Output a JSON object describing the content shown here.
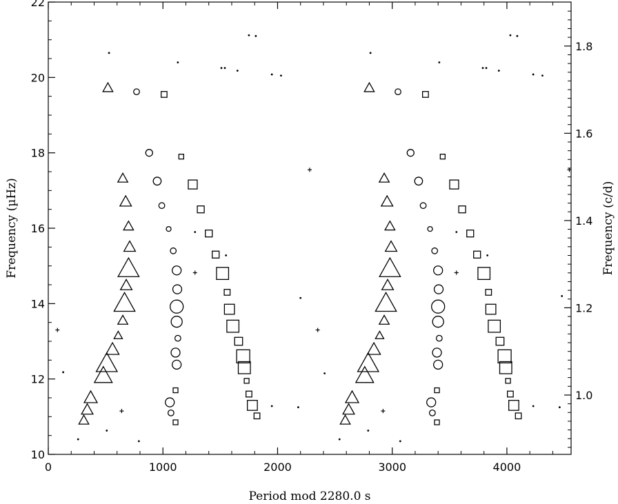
{
  "chart_data": {
    "type": "scatter",
    "xlabel": "Period mod 2280.0 s",
    "ylabel": "Frequency (µHz)",
    "ylabel2": "Frequency (c/d)",
    "xlim": [
      0,
      4560
    ],
    "ylim": [
      10,
      22
    ],
    "ylim2_cd": [
      0.864,
      1.9008
    ],
    "x_ticks": [
      0,
      1000,
      2000,
      3000,
      4000
    ],
    "x_tick_labels": [
      "0",
      "1000",
      "2000",
      "3000",
      "4000"
    ],
    "y_ticks": [
      10,
      12,
      14,
      16,
      18,
      20,
      22
    ],
    "y_tick_labels": [
      "10",
      "12",
      "14",
      "16",
      "18",
      "20",
      "22"
    ],
    "y2_ticks": [
      1.0,
      1.2,
      1.4,
      1.6,
      1.8
    ],
    "y2_tick_labels": [
      "1.0",
      "1.2",
      "1.4",
      "1.6",
      "1.8"
    ],
    "grid": false,
    "series": [
      {
        "marker": "triangle",
        "points": [
          {
            "x": 520,
            "y": 19.72,
            "s": 3
          },
          {
            "x": 650,
            "y": 17.32,
            "s": 3
          },
          {
            "x": 675,
            "y": 16.7,
            "s": 4
          },
          {
            "x": 700,
            "y": 16.05,
            "s": 3
          },
          {
            "x": 710,
            "y": 15.5,
            "s": 4
          },
          {
            "x": 700,
            "y": 14.92,
            "s": 10
          },
          {
            "x": 680,
            "y": 14.48,
            "s": 4
          },
          {
            "x": 665,
            "y": 14.0,
            "s": 10
          },
          {
            "x": 650,
            "y": 13.55,
            "s": 3
          },
          {
            "x": 610,
            "y": 13.15,
            "s": 2
          },
          {
            "x": 560,
            "y": 12.78,
            "s": 5
          },
          {
            "x": 510,
            "y": 12.4,
            "s": 10
          },
          {
            "x": 480,
            "y": 12.08,
            "s": 8
          },
          {
            "x": 370,
            "y": 11.5,
            "s": 5
          },
          {
            "x": 340,
            "y": 11.18,
            "s": 4
          },
          {
            "x": 310,
            "y": 10.9,
            "s": 3
          },
          {
            "x": 2800,
            "y": 19.72,
            "s": 3
          },
          {
            "x": 2930,
            "y": 17.32,
            "s": 3
          },
          {
            "x": 2955,
            "y": 16.7,
            "s": 4
          },
          {
            "x": 2980,
            "y": 16.05,
            "s": 3
          },
          {
            "x": 2990,
            "y": 15.5,
            "s": 4
          },
          {
            "x": 2980,
            "y": 14.92,
            "s": 10
          },
          {
            "x": 2960,
            "y": 14.48,
            "s": 4
          },
          {
            "x": 2945,
            "y": 14.0,
            "s": 10
          },
          {
            "x": 2930,
            "y": 13.55,
            "s": 3
          },
          {
            "x": 2890,
            "y": 13.15,
            "s": 2
          },
          {
            "x": 2840,
            "y": 12.78,
            "s": 5
          },
          {
            "x": 2790,
            "y": 12.4,
            "s": 10
          },
          {
            "x": 2760,
            "y": 12.08,
            "s": 8
          },
          {
            "x": 2650,
            "y": 11.5,
            "s": 5
          },
          {
            "x": 2620,
            "y": 11.18,
            "s": 4
          },
          {
            "x": 2590,
            "y": 10.9,
            "s": 3
          }
        ]
      },
      {
        "marker": "circle",
        "points": [
          {
            "x": 770,
            "y": 19.62,
            "s": 3
          },
          {
            "x": 880,
            "y": 18.0,
            "s": 4
          },
          {
            "x": 950,
            "y": 17.25,
            "s": 5
          },
          {
            "x": 990,
            "y": 16.6,
            "s": 3
          },
          {
            "x": 1050,
            "y": 15.98,
            "s": 2
          },
          {
            "x": 1090,
            "y": 15.4,
            "s": 3
          },
          {
            "x": 1120,
            "y": 14.88,
            "s": 6
          },
          {
            "x": 1125,
            "y": 14.38,
            "s": 6
          },
          {
            "x": 1120,
            "y": 13.92,
            "s": 10
          },
          {
            "x": 1120,
            "y": 13.52,
            "s": 8
          },
          {
            "x": 1130,
            "y": 13.08,
            "s": 3
          },
          {
            "x": 1110,
            "y": 12.7,
            "s": 6
          },
          {
            "x": 1120,
            "y": 12.38,
            "s": 6
          },
          {
            "x": 1060,
            "y": 11.38,
            "s": 6
          },
          {
            "x": 1070,
            "y": 11.1,
            "s": 3
          },
          {
            "x": 3050,
            "y": 19.62,
            "s": 3
          },
          {
            "x": 3160,
            "y": 18.0,
            "s": 4
          },
          {
            "x": 3230,
            "y": 17.25,
            "s": 5
          },
          {
            "x": 3270,
            "y": 16.6,
            "s": 3
          },
          {
            "x": 3330,
            "y": 15.98,
            "s": 2
          },
          {
            "x": 3370,
            "y": 15.4,
            "s": 3
          },
          {
            "x": 3400,
            "y": 14.88,
            "s": 6
          },
          {
            "x": 3405,
            "y": 14.38,
            "s": 6
          },
          {
            "x": 3400,
            "y": 13.92,
            "s": 10
          },
          {
            "x": 3400,
            "y": 13.52,
            "s": 8
          },
          {
            "x": 3410,
            "y": 13.08,
            "s": 3
          },
          {
            "x": 3390,
            "y": 12.7,
            "s": 6
          },
          {
            "x": 3400,
            "y": 12.38,
            "s": 6
          },
          {
            "x": 3340,
            "y": 11.38,
            "s": 6
          },
          {
            "x": 3350,
            "y": 11.1,
            "s": 3
          }
        ]
      },
      {
        "marker": "square",
        "points": [
          {
            "x": 1010,
            "y": 19.55,
            "s": 3
          },
          {
            "x": 1160,
            "y": 17.9,
            "s": 2
          },
          {
            "x": 1260,
            "y": 17.16,
            "s": 6
          },
          {
            "x": 1330,
            "y": 16.5,
            "s": 4
          },
          {
            "x": 1400,
            "y": 15.86,
            "s": 4
          },
          {
            "x": 1460,
            "y": 15.3,
            "s": 4
          },
          {
            "x": 1520,
            "y": 14.8,
            "s": 9
          },
          {
            "x": 1560,
            "y": 14.3,
            "s": 3
          },
          {
            "x": 1580,
            "y": 13.85,
            "s": 7
          },
          {
            "x": 1610,
            "y": 13.4,
            "s": 9
          },
          {
            "x": 1660,
            "y": 13.0,
            "s": 5
          },
          {
            "x": 1700,
            "y": 12.6,
            "s": 10
          },
          {
            "x": 1710,
            "y": 12.3,
            "s": 9
          },
          {
            "x": 1730,
            "y": 11.95,
            "s": 2
          },
          {
            "x": 1750,
            "y": 11.6,
            "s": 3
          },
          {
            "x": 1780,
            "y": 11.3,
            "s": 7
          },
          {
            "x": 1820,
            "y": 11.02,
            "s": 3
          },
          {
            "x": 1110,
            "y": 11.7,
            "s": 2
          },
          {
            "x": 1110,
            "y": 10.85,
            "s": 2
          },
          {
            "x": 3290,
            "y": 19.55,
            "s": 3
          },
          {
            "x": 3440,
            "y": 17.9,
            "s": 2
          },
          {
            "x": 3540,
            "y": 17.16,
            "s": 6
          },
          {
            "x": 3610,
            "y": 16.5,
            "s": 4
          },
          {
            "x": 3680,
            "y": 15.86,
            "s": 4
          },
          {
            "x": 3740,
            "y": 15.3,
            "s": 4
          },
          {
            "x": 3800,
            "y": 14.8,
            "s": 9
          },
          {
            "x": 3840,
            "y": 14.3,
            "s": 3
          },
          {
            "x": 3860,
            "y": 13.85,
            "s": 7
          },
          {
            "x": 3890,
            "y": 13.4,
            "s": 9
          },
          {
            "x": 3940,
            "y": 13.0,
            "s": 5
          },
          {
            "x": 3980,
            "y": 12.6,
            "s": 10
          },
          {
            "x": 3990,
            "y": 12.3,
            "s": 9
          },
          {
            "x": 4010,
            "y": 11.95,
            "s": 2
          },
          {
            "x": 4030,
            "y": 11.6,
            "s": 3
          },
          {
            "x": 4060,
            "y": 11.3,
            "s": 7
          },
          {
            "x": 4100,
            "y": 11.02,
            "s": 3
          },
          {
            "x": 3390,
            "y": 11.7,
            "s": 2
          },
          {
            "x": 3390,
            "y": 10.85,
            "s": 2
          }
        ]
      },
      {
        "marker": "dot",
        "points": [
          {
            "x": 530,
            "y": 20.65
          },
          {
            "x": 1130,
            "y": 20.4
          },
          {
            "x": 1510,
            "y": 20.25
          },
          {
            "x": 1540,
            "y": 20.25
          },
          {
            "x": 1650,
            "y": 20.18
          },
          {
            "x": 1750,
            "y": 21.12
          },
          {
            "x": 1810,
            "y": 21.1
          },
          {
            "x": 1950,
            "y": 20.08
          },
          {
            "x": 2030,
            "y": 20.05
          },
          {
            "x": 1550,
            "y": 15.28
          },
          {
            "x": 1280,
            "y": 15.9
          },
          {
            "x": 2200,
            "y": 14.15
          },
          {
            "x": 2410,
            "y": 12.15
          },
          {
            "x": 130,
            "y": 12.18
          },
          {
            "x": 1950,
            "y": 11.28
          },
          {
            "x": 2180,
            "y": 11.25
          },
          {
            "x": 260,
            "y": 10.4
          },
          {
            "x": 510,
            "y": 10.63
          },
          {
            "x": 790,
            "y": 10.35
          },
          {
            "x": 2810,
            "y": 20.65
          },
          {
            "x": 3410,
            "y": 20.4
          },
          {
            "x": 3790,
            "y": 20.25
          },
          {
            "x": 3820,
            "y": 20.25
          },
          {
            "x": 3930,
            "y": 20.18
          },
          {
            "x": 4030,
            "y": 21.12
          },
          {
            "x": 4090,
            "y": 21.1
          },
          {
            "x": 4230,
            "y": 20.08
          },
          {
            "x": 4310,
            "y": 20.05
          },
          {
            "x": 3830,
            "y": 15.28
          },
          {
            "x": 3560,
            "y": 15.9
          },
          {
            "x": 4480,
            "y": 14.2
          },
          {
            "x": 4230,
            "y": 11.28
          },
          {
            "x": 4460,
            "y": 11.25
          },
          {
            "x": 2540,
            "y": 10.4
          },
          {
            "x": 2790,
            "y": 10.63
          },
          {
            "x": 3070,
            "y": 10.35
          }
        ]
      },
      {
        "marker": "plus",
        "points": [
          {
            "x": 80,
            "y": 13.3
          },
          {
            "x": 2280,
            "y": 17.55
          },
          {
            "x": 2350,
            "y": 13.3
          },
          {
            "x": 640,
            "y": 11.15
          },
          {
            "x": 1280,
            "y": 14.82
          },
          {
            "x": 4545,
            "y": 17.55
          },
          {
            "x": 2920,
            "y": 11.15
          },
          {
            "x": 3560,
            "y": 14.82
          }
        ]
      }
    ]
  }
}
